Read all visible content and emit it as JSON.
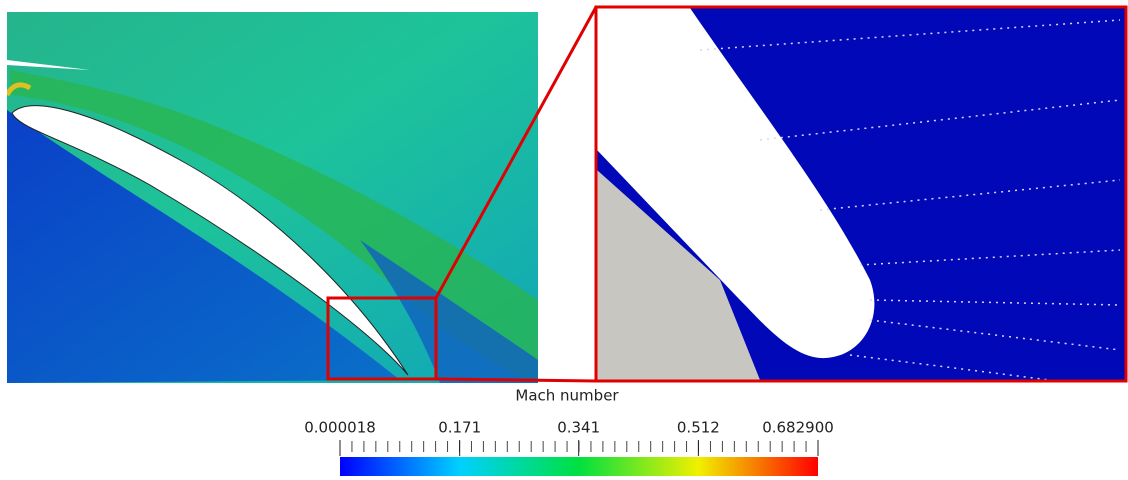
{
  "colorbar": {
    "title": "Mach number",
    "range": [
      1.8e-05,
      0.6829
    ],
    "ticks": [
      1.8e-05,
      0.171,
      0.341,
      0.512,
      {
        "value": 0.6829,
        "label": "0.682900"
      }
    ]
  }
}
